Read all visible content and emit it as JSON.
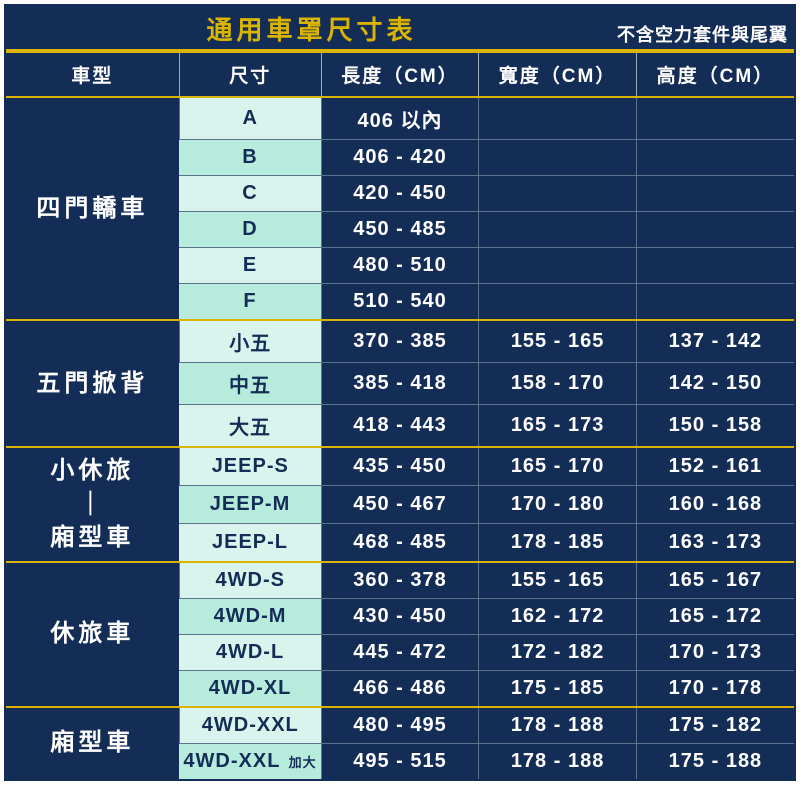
{
  "title": "通用車罩尺寸表",
  "note": "不含空力套件與尾翼",
  "headers": [
    "車型",
    "尺寸",
    "長度（CM）",
    "寬度（CM）",
    "高度（CM）"
  ],
  "groups": [
    {
      "model": "四門轎車",
      "rows": [
        {
          "size": "A",
          "len": "406 以內",
          "wid": "",
          "hgt": ""
        },
        {
          "size": "B",
          "len": "406 - 420",
          "wid": "",
          "hgt": ""
        },
        {
          "size": "C",
          "len": "420 - 450",
          "wid": "",
          "hgt": ""
        },
        {
          "size": "D",
          "len": "450 - 485",
          "wid": "",
          "hgt": ""
        },
        {
          "size": "E",
          "len": "480 - 510",
          "wid": "",
          "hgt": ""
        },
        {
          "size": "F",
          "len": "510 - 540",
          "wid": "",
          "hgt": ""
        }
      ]
    },
    {
      "model": "五門掀背",
      "rows": [
        {
          "size": "小五",
          "len": "370 - 385",
          "wid": "155 - 165",
          "hgt": "137 - 142"
        },
        {
          "size": "中五",
          "len": "385 - 418",
          "wid": "158 - 170",
          "hgt": "142 - 150"
        },
        {
          "size": "大五",
          "len": "418 - 443",
          "wid": "165 - 173",
          "hgt": "150 - 158"
        }
      ]
    },
    {
      "model": "小休旅\n｜\n廂型車",
      "rows": [
        {
          "size": "JEEP-S",
          "len": "435 - 450",
          "wid": "165 - 170",
          "hgt": "152 - 161"
        },
        {
          "size": "JEEP-M",
          "len": "450 - 467",
          "wid": "170 - 180",
          "hgt": "160 - 168"
        },
        {
          "size": "JEEP-L",
          "len": "468 - 485",
          "wid": "178 - 185",
          "hgt": "163 - 173"
        }
      ]
    },
    {
      "model": "休旅車",
      "rows": [
        {
          "size": "4WD-S",
          "len": "360 - 378",
          "wid": "155 - 165",
          "hgt": "165 - 167"
        },
        {
          "size": "4WD-M",
          "len": "430 - 450",
          "wid": "162 - 172",
          "hgt": "165 - 172"
        },
        {
          "size": "4WD-L",
          "len": "445 - 472",
          "wid": "172 - 182",
          "hgt": "170 - 173"
        },
        {
          "size": "4WD-XL",
          "len": "466 - 486",
          "wid": "175 - 185",
          "hgt": "170 - 178"
        }
      ]
    },
    {
      "model": "廂型車",
      "rows": [
        {
          "size": "4WD-XXL",
          "len": "480 - 495",
          "wid": "178 - 188",
          "hgt": "175 - 182"
        },
        {
          "size_html": "4WD-XXL <span class=\"sm\">加大</span>",
          "len": "495 - 515",
          "wid": "178 - 188",
          "hgt": "175 - 188"
        }
      ]
    }
  ]
}
